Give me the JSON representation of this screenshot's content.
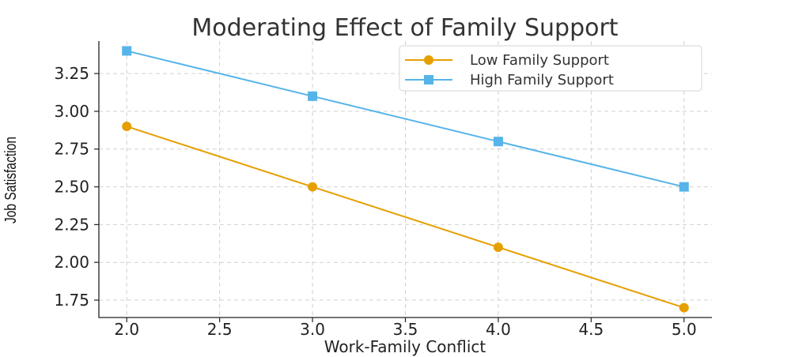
{
  "chart_data": {
    "type": "line",
    "title": "Moderating Effect of Family Support",
    "xlabel": "Work-Family Conflict",
    "ylabel": "Job Satisfaction",
    "xlim": [
      1.85,
      5.15
    ],
    "ylim": [
      1.635,
      3.465
    ],
    "x_ticks": [
      "2.0",
      "2.5",
      "3.0",
      "3.5",
      "4.0",
      "4.5",
      "5.0"
    ],
    "y_ticks": [
      "1.75",
      "2.00",
      "2.25",
      "2.50",
      "2.75",
      "3.00",
      "3.25"
    ],
    "grid": true,
    "legend_position": "top-right",
    "x": [
      2.0,
      3.0,
      4.0,
      5.0
    ],
    "series": [
      {
        "name": "Low Family Support",
        "values": [
          2.9,
          2.5,
          2.1,
          1.7
        ],
        "color": "#E69F00",
        "marker": "circle"
      },
      {
        "name": "High Family Support",
        "values": [
          3.4,
          3.1,
          2.8,
          2.5
        ],
        "color": "#56B4E9",
        "marker": "square"
      }
    ]
  }
}
